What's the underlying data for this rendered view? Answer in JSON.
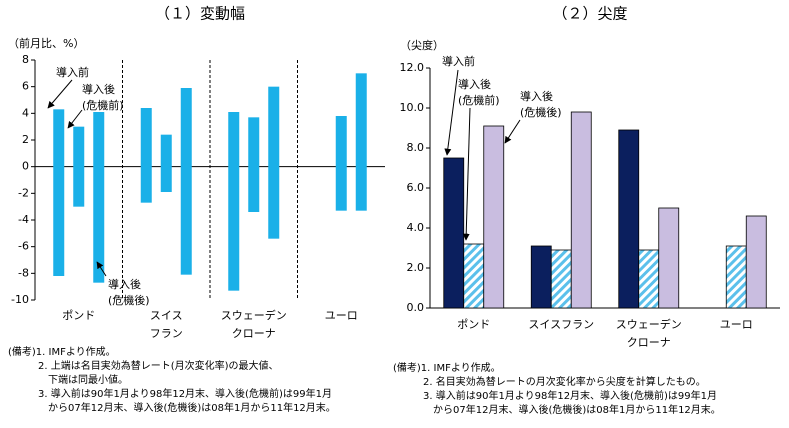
{
  "chart_data": [
    {
      "type": "range",
      "title": "（１）変動幅",
      "y_label": "（前月比、%）",
      "categories": [
        [
          "ポンド"
        ],
        [
          "スイス",
          "フラン"
        ],
        [
          "スウェーデン",
          "クローナ"
        ],
        [
          "ユーロ"
        ]
      ],
      "series": [
        {
          "name": "導入前",
          "color": "#1ab0e8",
          "high": [
            4.3,
            4.4,
            4.1,
            null
          ],
          "low": [
            -8.2,
            -2.7,
            -9.3,
            null
          ]
        },
        {
          "name": "導入後(危機前)",
          "color": "#1ab0e8",
          "high": [
            3.0,
            2.4,
            3.7,
            3.8
          ],
          "low": [
            -3.0,
            -1.9,
            -3.4,
            -3.3
          ]
        },
        {
          "name": "導入後(危機後)",
          "color": "#1ab0e8",
          "high": [
            4.1,
            5.9,
            6.0,
            7.0
          ],
          "low": [
            -8.7,
            -8.1,
            -5.4,
            -3.3
          ]
        }
      ],
      "ylim": [
        -10,
        8
      ],
      "yticks": [
        -10,
        -8,
        -6,
        -4,
        -2,
        0,
        2,
        4,
        6,
        8
      ],
      "notes": [
        "(備考)1. IMFより作成。",
        "2. 上端は名目実効為替レート(月次変化率)の最大値、",
        "下端は同最小値。",
        "3. 導入前は90年1月より98年12月末、導入後(危機前)は99年1月",
        "から07年12月末、導入後(危機後)は08年1月から11年12月末。"
      ]
    },
    {
      "type": "bar",
      "title": "（２）尖度",
      "y_label": "（尖度）",
      "categories": [
        [
          "ポンド"
        ],
        [
          "スイスフラン"
        ],
        [
          "スウェーデン",
          "クローナ"
        ],
        [
          "ユーロ"
        ]
      ],
      "series": [
        {
          "name": "導入前",
          "color": "#0b1f5e",
          "values": [
            7.5,
            3.1,
            8.9,
            null
          ]
        },
        {
          "name": "導入後(危機前)",
          "color": "#5bc0eb",
          "pattern": "hatch",
          "values": [
            3.2,
            2.9,
            2.9,
            3.1
          ]
        },
        {
          "name": "導入後(危機後)",
          "color": "#c9bde0",
          "values": [
            9.1,
            9.8,
            5.0,
            4.6
          ]
        }
      ],
      "ylim": [
        0,
        12
      ],
      "yticks": [
        {
          "value": 0,
          "label": "0.0"
        },
        {
          "value": 2,
          "label": "2.0"
        },
        {
          "value": 4,
          "label": "4.0"
        },
        {
          "value": 6,
          "label": "6.0"
        },
        {
          "value": 8,
          "label": "8.0"
        },
        {
          "value": 10,
          "label": "10.0"
        },
        {
          "value": 12,
          "label": "12.0"
        }
      ],
      "notes": [
        "(備考)1. IMFより作成。",
        "2. 名目実効為替レートの月次変化率から尖度を計算したもの。",
        "3. 導入前は90年1月より98年12月末、導入後(危機前)は99年1月",
        "から07年12月末、導入後(危機後)は08年1月から11年12月末。"
      ]
    }
  ]
}
